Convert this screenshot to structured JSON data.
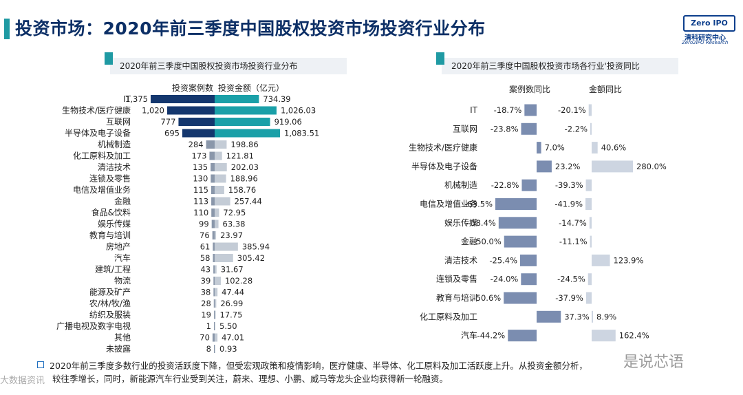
{
  "header": {
    "title": "投资市场：2020年前三季度中国股权投资市场投资行业分布",
    "logo_box": "Zero IPO",
    "logo_cn": "清科研究中心",
    "logo_en": "Zero2IPO Research"
  },
  "left_panel_title": "2020年前三季度中国股权投资市场投资行业分布",
  "right_panel_title": "2020年前三季度中国股权投资市场各行业'投资同比",
  "chart_data": [
    {
      "type": "bar",
      "title": "2020年前三季度中国股权投资市场投资行业分布",
      "legend": [
        "投资案例数",
        "投资金额（亿元）"
      ],
      "series": [
        {
          "name": "投资案例数",
          "values": [
            1375,
            1020,
            777,
            695,
            284,
            173,
            135,
            130,
            115,
            113,
            110,
            99,
            76,
            61,
            58,
            43,
            39,
            38,
            28,
            19,
            1,
            70,
            8
          ]
        },
        {
          "name": "投资金额（亿元）",
          "values": [
            734.39,
            1026.03,
            919.06,
            1083.51,
            198.86,
            121.81,
            202.03,
            188.96,
            158.76,
            257.44,
            72.95,
            63.38,
            23.97,
            385.94,
            305.42,
            31.67,
            102.28,
            47.44,
            26.99,
            17.75,
            5.5,
            47.01,
            0.93
          ]
        }
      ],
      "categories": [
        "IT",
        "生物技术/医疗健康",
        "互联网",
        "半导体及电子设备",
        "机械制造",
        "化工原料及加工",
        "清洁技术",
        "连锁及零售",
        "电信及增值业务",
        "金融",
        "食品&饮料",
        "娱乐传媒",
        "教育与培训",
        "房地产",
        "汽车",
        "建筑/工程",
        "物流",
        "能源及矿产",
        "农/林/牧/渔",
        "纺织及服装",
        "广播电视及数字电视",
        "其他",
        "未披露"
      ],
      "case_labels": [
        "1,375",
        "1,020",
        "777",
        "695",
        "284",
        "173",
        "135",
        "130",
        "115",
        "113",
        "110",
        "99",
        "76",
        "61",
        "58",
        "43",
        "39",
        "38",
        "28",
        "19",
        "1",
        "70",
        "8"
      ],
      "amount_labels": [
        "734.39",
        "1,026.03",
        "919.06",
        "1,083.51",
        "198.86",
        "121.81",
        "202.03",
        "188.96",
        "158.76",
        "257.44",
        "72.95",
        "63.38",
        "23.97",
        "385.94",
        "305.42",
        "31.67",
        "102.28",
        "47.44",
        "26.99",
        "17.75",
        "5.50",
        "47.01",
        "0.93"
      ],
      "colors": {
        "top_cases": "#14376e",
        "top_amount": "#1aa0a8",
        "other_cases": "#8a97aa",
        "other_amount": "#c4ccd6"
      }
    },
    {
      "type": "bar",
      "title": "2020年前三季度中国股权投资市场各行业'投资同比",
      "column_headers": [
        "案例数同比",
        "金额同比"
      ],
      "categories": [
        "IT",
        "互联网",
        "生物技术/医疗健康",
        "半导体及电子设备",
        "机械制造",
        "电信及增值业务",
        "娱乐传媒",
        "金融",
        "清洁技术",
        "连锁及零售",
        "教育与培训",
        "化工原料及加工",
        "汽车"
      ],
      "series": [
        {
          "name": "案例数同比",
          "unit": "%",
          "values": [
            -18.7,
            -23.8,
            7.0,
            23.2,
            -22.8,
            -63.5,
            -58.4,
            -50.0,
            -25.4,
            -24.0,
            -50.6,
            37.3,
            -44.2
          ]
        },
        {
          "name": "金额同比",
          "unit": "%",
          "values": [
            -20.1,
            -2.2,
            40.6,
            280.0,
            -39.3,
            -41.9,
            -14.7,
            -11.1,
            123.9,
            -24.5,
            -37.9,
            8.9,
            162.4
          ]
        }
      ],
      "case_labels": [
        "-18.7%",
        "-23.8%",
        "7.0%",
        "23.2%",
        "-22.8%",
        "-63.5%",
        "-58.4%",
        "-50.0%",
        "-25.4%",
        "-24.0%",
        "-50.6%",
        "37.3%",
        "-44.2%"
      ],
      "amount_labels": [
        "-20.1%",
        "-2.2%",
        "40.6%",
        "280.0%",
        "-39.3%",
        "-41.9%",
        "-14.7%",
        "-11.1%",
        "123.9%",
        "-24.5%",
        "-37.9%",
        "8.9%",
        "162.4%"
      ],
      "colors": {
        "cases": "#7b8db0",
        "amount": "#cdd5e1"
      }
    }
  ],
  "footer": {
    "line1": "2020年前三季度多数行业的投资活跃度下降，但受宏观政策和疫情影响，医疗健康、半导体、化工原料及加工活跃度上升。从投资金额分析，",
    "line2": "较往季增长，同时，新能源汽车行业受到关注，蔚来、理想、小鹏、威马等龙头企业均获得新一轮融资。"
  },
  "watermarks": {
    "left": "大数据资讯",
    "right": "是说芯语"
  }
}
